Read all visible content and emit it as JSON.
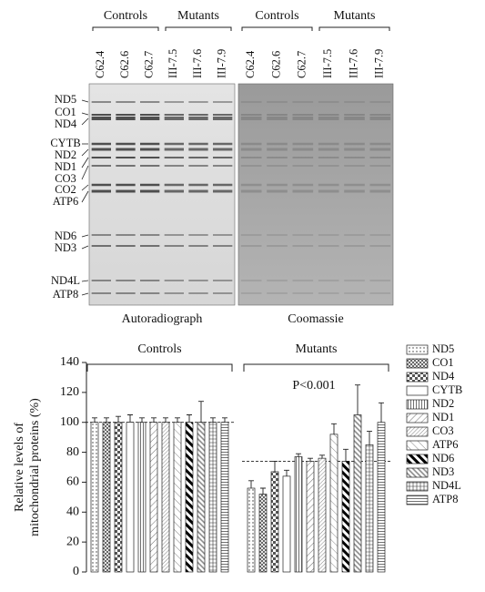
{
  "gel": {
    "panels": [
      {
        "caption": "Autoradiograph",
        "groups": [
          "Controls",
          "Mutants"
        ],
        "lanes": [
          "C62.4",
          "C62.6",
          "C62.7",
          "III-7.5",
          "III-7.6",
          "III-7.9"
        ]
      },
      {
        "caption": "Coomassie",
        "groups": [
          "Controls",
          "Mutants"
        ],
        "lanes": [
          "C62.4",
          "C62.6",
          "C62.7",
          "III-7.5",
          "III-7.6",
          "III-7.9"
        ]
      }
    ],
    "band_labels": [
      "ND5",
      "CO1",
      "ND4",
      "CYTB",
      "ND2",
      "ND1",
      "CO3",
      "CO2",
      "ATP6",
      "ND6",
      "ND3",
      "ND4L",
      "ATP8"
    ]
  },
  "chart_data": {
    "type": "grouped_bar",
    "categories": [
      "Controls",
      "Mutants"
    ],
    "y_label": [
      "Relative levels of",
      "mitochondrial proteins (%)"
    ],
    "annotation": "P<0.001",
    "group_means": [
      100,
      74
    ],
    "ylim": [
      0,
      140
    ],
    "yticks": [
      0,
      20,
      40,
      60,
      80,
      100,
      120,
      140
    ],
    "series": [
      {
        "name": "ND5",
        "pattern": "dots",
        "values": [
          100,
          56
        ],
        "errors": [
          3,
          5
        ]
      },
      {
        "name": "CO1",
        "pattern": "crosshatch",
        "values": [
          100,
          52
        ],
        "errors": [
          3,
          4
        ]
      },
      {
        "name": "ND4",
        "pattern": "checker",
        "values": [
          100,
          67
        ],
        "errors": [
          4,
          7
        ]
      },
      {
        "name": "CYTB",
        "pattern": "plain",
        "values": [
          100,
          64
        ],
        "errors": [
          5,
          4
        ]
      },
      {
        "name": "ND2",
        "pattern": "vlines",
        "values": [
          100,
          77
        ],
        "errors": [
          3,
          2
        ]
      },
      {
        "name": "ND1",
        "pattern": "diag",
        "values": [
          100,
          74
        ],
        "errors": [
          3,
          2
        ]
      },
      {
        "name": "CO3",
        "pattern": "diagdense",
        "values": [
          100,
          76
        ],
        "errors": [
          3,
          2
        ]
      },
      {
        "name": "ATP6",
        "pattern": "diagwide",
        "values": [
          100,
          92
        ],
        "errors": [
          3,
          7
        ]
      },
      {
        "name": "ND6",
        "pattern": "diagbold",
        "values": [
          100,
          74
        ],
        "errors": [
          5,
          8
        ]
      },
      {
        "name": "ND3",
        "pattern": "diaggray",
        "values": [
          100,
          105
        ],
        "errors": [
          14,
          20
        ]
      },
      {
        "name": "ND4L",
        "pattern": "grid",
        "values": [
          100,
          85
        ],
        "errors": [
          3,
          9
        ]
      },
      {
        "name": "ATP8",
        "pattern": "hlines",
        "values": [
          100,
          100
        ],
        "errors": [
          3,
          13
        ]
      }
    ]
  }
}
